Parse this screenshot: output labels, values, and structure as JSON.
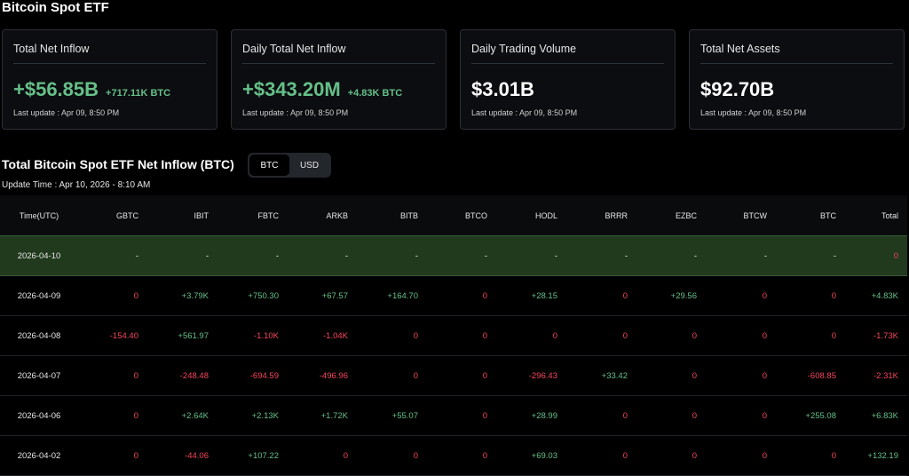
{
  "page_title": "Bitcoin Spot ETF",
  "colors": {
    "positive": "#65c089",
    "negative": "#f6465d",
    "neutral": "#ffffff"
  },
  "cards": [
    {
      "title": "Total Net Inflow",
      "value": "+$56.85B",
      "sub": "+717.11K BTC",
      "update": "Last update : Apr 09, 8:50 PM",
      "tone": "pos"
    },
    {
      "title": "Daily Total Net Inflow",
      "value": "+$343.20M",
      "sub": "+4.83K BTC",
      "update": "Last update : Apr 09, 8:50 PM",
      "tone": "pos"
    },
    {
      "title": "Daily Trading Volume",
      "value": "$3.01B",
      "sub": "",
      "update": "Last update : Apr 09, 8:50 PM",
      "tone": "neutral"
    },
    {
      "title": "Total Net Assets",
      "value": "$92.70B",
      "sub": "",
      "update": "Last update : Apr 09, 8:50 PM",
      "tone": "neutral"
    }
  ],
  "section_title": "Total Bitcoin Spot ETF Net Inflow (BTC)",
  "toggle": {
    "options": [
      "BTC",
      "USD"
    ],
    "selected": "BTC"
  },
  "update_time": "Update Time : Apr 10, 2026 - 8:10 AM",
  "table": {
    "headers": [
      "Time(UTC)",
      "GBTC",
      "IBIT",
      "FBTC",
      "ARKB",
      "BITB",
      "BTCO",
      "HODL",
      "BRRR",
      "EZBC",
      "BTCW",
      "BTC",
      "Total"
    ],
    "rows": [
      {
        "date": "2026-04-10",
        "highlight": true,
        "cells": [
          "-",
          "-",
          "-",
          "-",
          "-",
          "-",
          "-",
          "-",
          "-",
          "-",
          "-",
          "0"
        ]
      },
      {
        "date": "2026-04-09",
        "highlight": false,
        "cells": [
          "0",
          "+3.79K",
          "+750.30",
          "+67.57",
          "+164.70",
          "0",
          "+28.15",
          "0",
          "+29.56",
          "0",
          "0",
          "+4.83K"
        ]
      },
      {
        "date": "2026-04-08",
        "highlight": false,
        "cells": [
          "-154.40",
          "+561.97",
          "-1.10K",
          "-1.04K",
          "0",
          "0",
          "0",
          "0",
          "0",
          "0",
          "0",
          "-1.73K"
        ]
      },
      {
        "date": "2026-04-07",
        "highlight": false,
        "cells": [
          "0",
          "-248.48",
          "-694.59",
          "-496.96",
          "0",
          "0",
          "-296.43",
          "+33.42",
          "0",
          "0",
          "-608.85",
          "-2.31K"
        ]
      },
      {
        "date": "2026-04-06",
        "highlight": false,
        "cells": [
          "0",
          "+2.64K",
          "+2.13K",
          "+1.72K",
          "+55.07",
          "0",
          "+28.99",
          "0",
          "0",
          "0",
          "+255.08",
          "+6.83K"
        ]
      },
      {
        "date": "2026-04-02",
        "highlight": false,
        "cells": [
          "0",
          "-44.06",
          "+107.22",
          "0",
          "0",
          "0",
          "+69.03",
          "0",
          "0",
          "0",
          "0",
          "+132.19"
        ]
      }
    ]
  }
}
